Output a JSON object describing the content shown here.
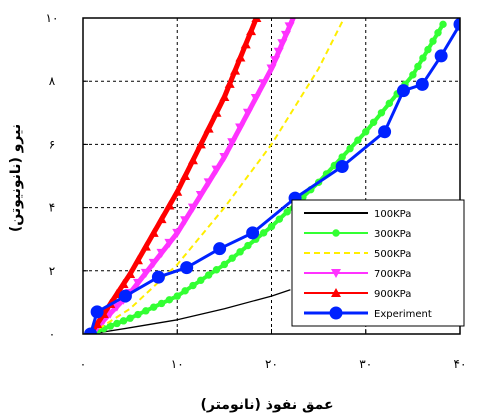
{
  "chart_data": {
    "type": "line",
    "xlabel": "عمق نفوذ (نانومتر)",
    "ylabel": "نیرو (نانونیوتن)",
    "xlim": [
      0,
      40
    ],
    "ylim": [
      0,
      10
    ],
    "x_ticks": [
      0,
      10,
      20,
      30,
      40
    ],
    "y_ticks": [
      0,
      2,
      4,
      6,
      8,
      10
    ],
    "x_tick_labels": [
      "۰",
      "۱۰",
      "۲۰",
      "۳۰",
      "۴۰"
    ],
    "y_tick_labels": [
      "۰",
      "۲",
      "۴",
      "۶",
      "۸",
      "۱۰"
    ],
    "grid": true,
    "legend_position": "bottom-right",
    "series": [
      {
        "name": "100KPa",
        "color": "#000000",
        "style": "solid",
        "marker": "none",
        "x": [
          0.8,
          5,
          10,
          15,
          20,
          22
        ],
        "y": [
          0.0,
          0.2,
          0.45,
          0.8,
          1.2,
          1.4
        ]
      },
      {
        "name": "300KPa",
        "color": "#33ff33",
        "style": "solid",
        "marker": "circle",
        "x": [
          0.8,
          5,
          10,
          15,
          20,
          25,
          30,
          35,
          38.2
        ],
        "y": [
          0.0,
          0.5,
          1.2,
          2.2,
          3.4,
          4.8,
          6.4,
          8.2,
          9.8
        ]
      },
      {
        "name": "500KPa",
        "color": "#ffee00",
        "style": "dashed",
        "marker": "none",
        "x": [
          0.8,
          5,
          10,
          15,
          20,
          25,
          27.7
        ],
        "y": [
          0.0,
          0.8,
          2.2,
          4.0,
          6.0,
          8.4,
          10.0
        ]
      },
      {
        "name": "700KPa",
        "color": "#ff33ff",
        "style": "solid",
        "marker": "triangle-down",
        "x": [
          0.8,
          5,
          10,
          15,
          20,
          22.3
        ],
        "y": [
          0.0,
          1.3,
          3.2,
          5.6,
          8.4,
          10.0
        ]
      },
      {
        "name": "900KPa",
        "color": "#ff0000",
        "style": "solid",
        "marker": "triangle-up",
        "x": [
          0.8,
          5,
          10,
          15,
          18.4
        ],
        "y": [
          0.0,
          1.9,
          4.5,
          7.5,
          10.0
        ]
      },
      {
        "name": "Experiment",
        "color": "#0022ff",
        "style": "solid",
        "marker": "big-circle",
        "x": [
          0.8,
          1.5,
          4.5,
          8,
          11,
          14.5,
          18,
          22.5,
          27.5,
          32,
          34,
          36,
          38,
          40
        ],
        "y": [
          0.0,
          0.7,
          1.2,
          1.8,
          2.1,
          2.7,
          3.2,
          4.3,
          5.3,
          6.4,
          7.7,
          7.9,
          8.8,
          9.8
        ]
      }
    ]
  }
}
